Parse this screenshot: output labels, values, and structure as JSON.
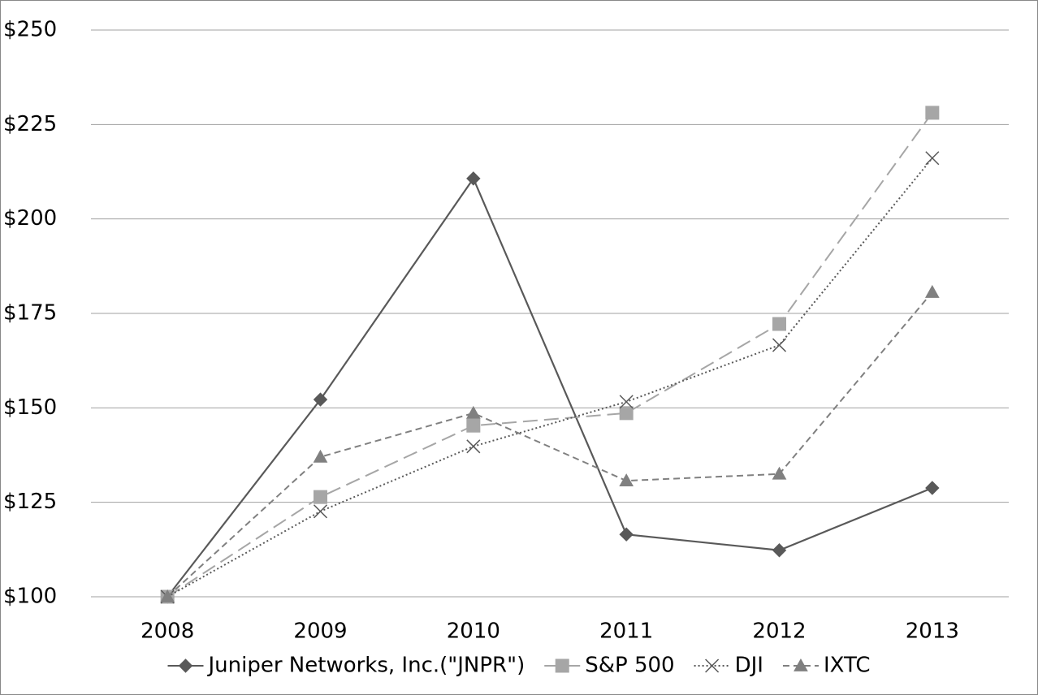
{
  "chart_data": {
    "type": "line",
    "categories": [
      "2008",
      "2009",
      "2010",
      "2011",
      "2012",
      "2013"
    ],
    "series": [
      {
        "name": "Juniper Networks, Inc.(\"JNPR\")",
        "color": "#595959",
        "marker": "diamond",
        "dash": "solid",
        "values": [
          100,
          152.2,
          210.7,
          116.5,
          112.3,
          128.8
        ]
      },
      {
        "name": "S&P 500",
        "color": "#a6a6a6",
        "marker": "square",
        "dash": "long",
        "values": [
          100,
          126.4,
          145.3,
          148.6,
          172.2,
          228.1
        ]
      },
      {
        "name": "DJI",
        "color": "#595959",
        "marker": "x",
        "dash": "dot",
        "values": [
          100,
          122.6,
          139.8,
          151.6,
          166.6,
          216.1
        ]
      },
      {
        "name": "IXTC",
        "color": "#808080",
        "marker": "triangle",
        "dash": "dash",
        "values": [
          100,
          137,
          148.6,
          130.7,
          132.5,
          180.6
        ]
      }
    ],
    "ylim": [
      100,
      250
    ],
    "yticks": [
      {
        "value": 100,
        "label": "$100"
      },
      {
        "value": 125,
        "label": "$125"
      },
      {
        "value": 150,
        "label": "$150"
      },
      {
        "value": 175,
        "label": "$175"
      },
      {
        "value": 200,
        "label": "$200"
      },
      {
        "value": 225,
        "label": "$225"
      },
      {
        "value": 250,
        "label": "$250"
      }
    ],
    "grid": true,
    "legend": "bottom"
  }
}
